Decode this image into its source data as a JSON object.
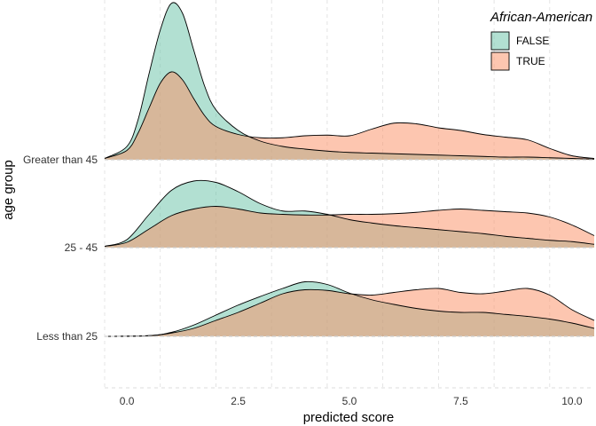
{
  "chart_data": {
    "type": "ridgeline-density",
    "xlabel": "predicted score",
    "ylabel": "age group",
    "xlim": [
      -0.5,
      10.5
    ],
    "x_ticks": [
      {
        "value": 0,
        "label": "0.0"
      },
      {
        "value": 2.5,
        "label": "2.5"
      },
      {
        "value": 5,
        "label": "5.0"
      },
      {
        "value": 7.5,
        "label": "7.5"
      },
      {
        "value": 10,
        "label": "10.0"
      }
    ],
    "grid": "vertical dashed",
    "legend": {
      "title": "African-American",
      "position": "top-right",
      "entries": [
        {
          "label": "FALSE",
          "color": "#66c2a5"
        },
        {
          "label": "TRUE",
          "color": "#fc8d62"
        }
      ]
    },
    "overlap_color": "#b8ab85",
    "groups": [
      {
        "name": "Less than 25",
        "series": [
          {
            "name": "FALSE",
            "x": [
              -0.5,
              0.5,
              1.0,
              1.5,
              2.0,
              2.5,
              3.0,
              3.5,
              4.0,
              4.5,
              5.0,
              5.5,
              6.0,
              6.5,
              7.0,
              7.5,
              8.0,
              8.5,
              9.0,
              9.5,
              10.0,
              10.5
            ],
            "y": [
              0,
              0.01,
              0.06,
              0.17,
              0.32,
              0.47,
              0.6,
              0.72,
              0.82,
              0.78,
              0.65,
              0.55,
              0.48,
              0.42,
              0.38,
              0.36,
              0.36,
              0.33,
              0.3,
              0.26,
              0.2,
              0.12
            ]
          },
          {
            "name": "TRUE",
            "x": [
              -0.5,
              0.5,
              1.0,
              1.5,
              2.0,
              2.5,
              3.0,
              3.5,
              4.0,
              4.5,
              5.0,
              5.5,
              6.0,
              6.5,
              7.0,
              7.5,
              8.0,
              8.5,
              9.0,
              9.5,
              10.0,
              10.5
            ],
            "y": [
              0,
              0.01,
              0.05,
              0.12,
              0.24,
              0.36,
              0.5,
              0.64,
              0.7,
              0.69,
              0.64,
              0.62,
              0.66,
              0.7,
              0.72,
              0.66,
              0.64,
              0.68,
              0.72,
              0.62,
              0.4,
              0.24
            ]
          }
        ]
      },
      {
        "name": "25 - 45",
        "series": [
          {
            "name": "FALSE",
            "x": [
              -0.5,
              0,
              0.5,
              1.0,
              1.5,
              2.0,
              2.5,
              3.0,
              3.5,
              4.0,
              4.5,
              5.0,
              5.5,
              6.0,
              6.5,
              7.0,
              7.5,
              8.0,
              8.5,
              9.0,
              9.5,
              10.0,
              10.5
            ],
            "y": [
              0.02,
              0.12,
              0.5,
              0.86,
              1.0,
              0.98,
              0.84,
              0.66,
              0.55,
              0.55,
              0.5,
              0.42,
              0.37,
              0.33,
              0.3,
              0.27,
              0.24,
              0.21,
              0.17,
              0.14,
              0.11,
              0.09,
              0.05
            ]
          },
          {
            "name": "TRUE",
            "x": [
              -0.5,
              0,
              0.5,
              1.0,
              1.5,
              2.0,
              2.5,
              3.0,
              3.5,
              4.0,
              4.5,
              5.0,
              5.5,
              6.0,
              6.5,
              7.0,
              7.5,
              8.0,
              8.5,
              9.0,
              9.5,
              10.0,
              10.5
            ],
            "y": [
              0.02,
              0.08,
              0.28,
              0.48,
              0.58,
              0.62,
              0.58,
              0.52,
              0.5,
              0.49,
              0.49,
              0.5,
              0.5,
              0.51,
              0.53,
              0.56,
              0.58,
              0.56,
              0.54,
              0.52,
              0.46,
              0.34,
              0.18
            ]
          }
        ]
      },
      {
        "name": "Greater than 45",
        "series": [
          {
            "name": "FALSE",
            "x": [
              -0.5,
              0,
              0.25,
              0.5,
              0.75,
              1.0,
              1.25,
              1.5,
              1.75,
              2.0,
              2.5,
              3.0,
              3.5,
              4.0,
              4.5,
              5.0,
              5.5,
              6.0,
              6.5,
              7.0,
              7.5,
              8.0,
              8.5,
              9.0,
              9.5,
              10.0,
              10.5
            ],
            "y": [
              0.02,
              0.2,
              0.6,
              1.3,
              1.95,
              2.35,
              2.2,
              1.65,
              1.1,
              0.75,
              0.44,
              0.28,
              0.2,
              0.16,
              0.13,
              0.11,
              0.1,
              0.09,
              0.08,
              0.07,
              0.06,
              0.05,
              0.04,
              0.04,
              0.03,
              0.02,
              0.01
            ]
          },
          {
            "name": "TRUE",
            "x": [
              -0.5,
              0,
              0.25,
              0.5,
              0.75,
              1.0,
              1.25,
              1.5,
              1.75,
              2.0,
              2.5,
              3.0,
              3.5,
              4.0,
              4.5,
              5.0,
              5.5,
              6.0,
              6.5,
              7.0,
              7.5,
              8.0,
              8.5,
              9.0,
              9.5,
              10.0,
              10.5
            ],
            "y": [
              0.02,
              0.14,
              0.4,
              0.78,
              1.15,
              1.32,
              1.2,
              0.92,
              0.66,
              0.5,
              0.38,
              0.33,
              0.33,
              0.36,
              0.37,
              0.36,
              0.46,
              0.55,
              0.54,
              0.48,
              0.44,
              0.38,
              0.34,
              0.3,
              0.17,
              0.06,
              0.02
            ]
          }
        ]
      }
    ]
  }
}
